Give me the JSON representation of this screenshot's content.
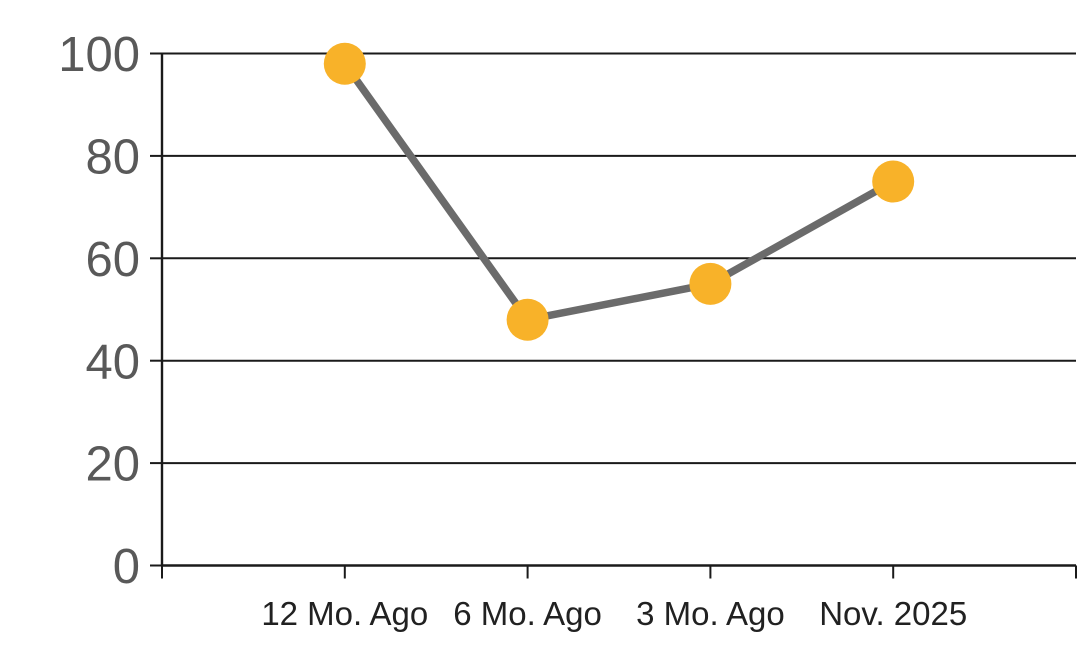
{
  "chart_data": {
    "type": "line",
    "categories": [
      "12 Mo. Ago",
      "6 Mo. Ago",
      "3 Mo. Ago",
      "Nov. 2025"
    ],
    "values": [
      98,
      48,
      55,
      75
    ],
    "ylim": [
      0,
      100
    ],
    "yticks": [
      0,
      20,
      40,
      60,
      80,
      100
    ],
    "grid": "horizontal",
    "legend_position": "none",
    "colors": {
      "marker": "#F8B229",
      "line": "#6B6B6B",
      "axis": "#1A1A1A",
      "gridline": "#1A1A1A",
      "ytick_label": "#595959",
      "xtick_label": "#212121",
      "background": "#FFFFFF"
    }
  }
}
